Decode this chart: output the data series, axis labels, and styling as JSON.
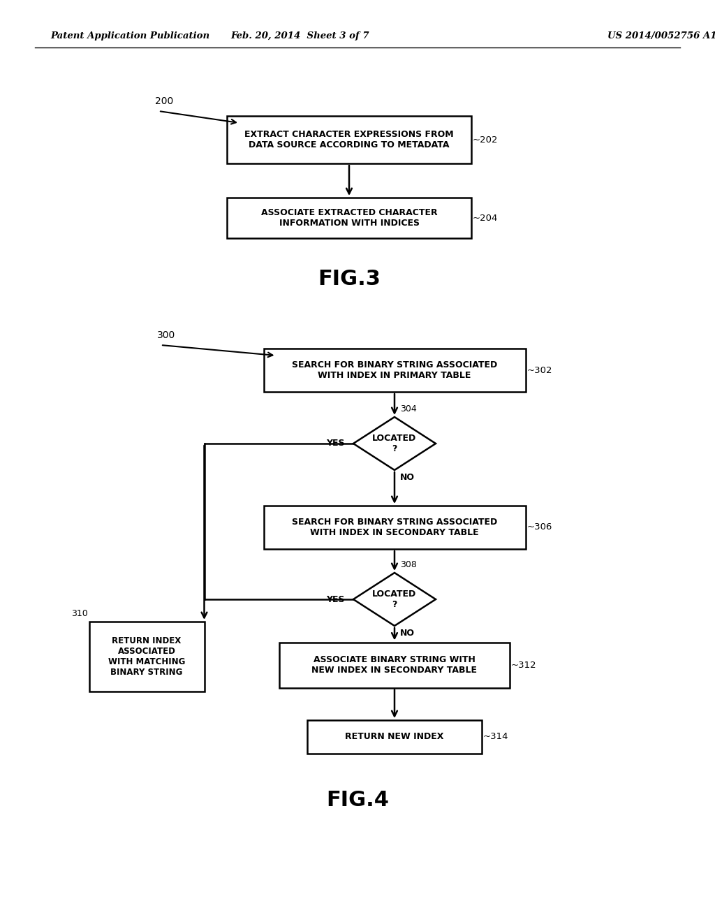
{
  "background_color": "#ffffff",
  "header_left": "Patent Application Publication",
  "header_center": "Feb. 20, 2014  Sheet 3 of 7",
  "header_right": "US 2014/0052756 A1",
  "fig3_label": "FIG.3",
  "fig4_label": "FIG.4",
  "box202_text": "EXTRACT CHARACTER EXPRESSIONS FROM\nDATA SOURCE ACCORDING TO METADATA",
  "box202_label": "202",
  "box204_text": "ASSOCIATE EXTRACTED CHARACTER\nINFORMATION WITH INDICES",
  "box204_label": "204",
  "box302_text": "SEARCH FOR BINARY STRING ASSOCIATED\nWITH INDEX IN PRIMARY TABLE",
  "box302_label": "302",
  "diamond304_text": "LOCATED\n?",
  "diamond304_label": "304",
  "box306_text": "SEARCH FOR BINARY STRING ASSOCIATED\nWITH INDEX IN SECONDARY TABLE",
  "box306_label": "306",
  "diamond308_text": "LOCATED\n?",
  "diamond308_label": "308",
  "box310_text": "RETURN INDEX\nASSOCIATED\nWITH MATCHING\nBINARY STRING",
  "box310_label": "310",
  "box312_text": "ASSOCIATE BINARY STRING WITH\nNEW INDEX IN SECONDARY TABLE",
  "box312_label": "312",
  "box314_text": "RETURN NEW INDEX",
  "box314_label": "314"
}
